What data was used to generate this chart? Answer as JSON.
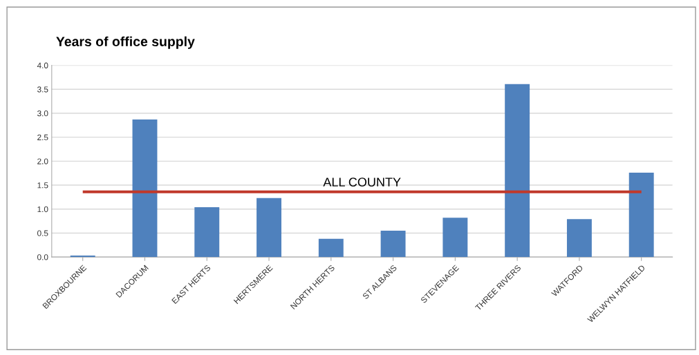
{
  "chart_data": {
    "type": "bar",
    "title": "Years of office supply",
    "categories": [
      "BROXBOURNE",
      "DACORUM",
      "EAST HERTS",
      "HERTSMERE",
      "NORTH HERTS",
      "ST ALBANS",
      "STEVENAGE",
      "THREE RIVERS",
      "WATFORD",
      "WELWYN HATFIELD"
    ],
    "values": [
      0.03,
      2.87,
      1.04,
      1.23,
      0.38,
      0.55,
      0.82,
      3.61,
      0.79,
      1.76
    ],
    "color": "#4f81bd",
    "ylim": [
      0,
      4
    ],
    "yticks": [
      {
        "value": 0,
        "label": "0.0"
      },
      {
        "value": 0.5,
        "label": "0.5"
      },
      {
        "value": 1,
        "label": "1.0"
      },
      {
        "value": 1.5,
        "label": "1.5"
      },
      {
        "value": 2,
        "label": "2.0"
      },
      {
        "value": 2.5,
        "label": "2.5"
      },
      {
        "value": 3,
        "label": "3.0"
      },
      {
        "value": 3.5,
        "label": "3.5"
      },
      {
        "value": 4,
        "label": "4.0"
      }
    ],
    "grid": "y",
    "ref_lines": [
      {
        "axis": "y",
        "value": 1.36,
        "label": "ALL COUNTY",
        "color": "#c0392b"
      }
    ]
  }
}
